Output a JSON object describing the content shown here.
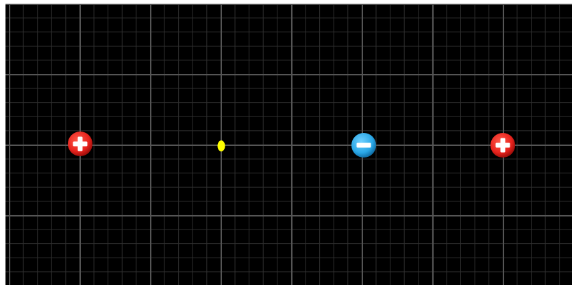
{
  "canvas": {
    "background_color": "#000000",
    "grid_color_major": "#555555",
    "grid_color_minor": "#2f2f2f"
  },
  "charges": [
    {
      "name": "charge-positive-left",
      "sign": "+",
      "icon": "plus-icon",
      "color": "#e8231d"
    },
    {
      "name": "charge-negative",
      "sign": "-",
      "icon": "minus-icon",
      "color": "#2aa7e6"
    },
    {
      "name": "charge-positive-right",
      "sign": "+",
      "icon": "plus-icon",
      "color": "#e8231d"
    }
  ],
  "test_particle": {
    "color": "#ffff00"
  }
}
